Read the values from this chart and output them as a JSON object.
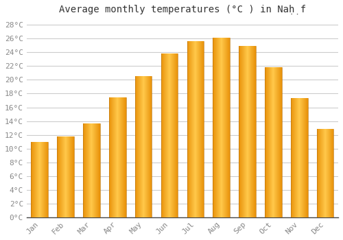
{
  "title": "Average monthly temperatures (°C ) in Naḥ̣f",
  "months": [
    "Jan",
    "Feb",
    "Mar",
    "Apr",
    "May",
    "Jun",
    "Jul",
    "Aug",
    "Sep",
    "Oct",
    "Nov",
    "Dec"
  ],
  "values": [
    11.0,
    11.8,
    13.7,
    17.4,
    20.5,
    23.8,
    25.6,
    26.1,
    24.9,
    21.8,
    17.3,
    12.9
  ],
  "bar_color_left": "#E8920A",
  "bar_color_center": "#FFC84A",
  "bar_color_right": "#E8920A",
  "background_color": "#FFFFFF",
  "plot_bg_color": "#FFFFFF",
  "grid_color": "#CCCCCC",
  "ytick_labels": [
    "0°C",
    "2°C",
    "4°C",
    "6°C",
    "8°C",
    "10°C",
    "12°C",
    "14°C",
    "16°C",
    "18°C",
    "20°C",
    "22°C",
    "24°C",
    "26°C",
    "28°C"
  ],
  "ytick_values": [
    0,
    2,
    4,
    6,
    8,
    10,
    12,
    14,
    16,
    18,
    20,
    22,
    24,
    26,
    28
  ],
  "ylim": [
    0,
    29
  ],
  "title_fontsize": 10,
  "tick_fontsize": 8,
  "tick_color": "#888888",
  "spine_color": "#444444",
  "font_family": "monospace"
}
